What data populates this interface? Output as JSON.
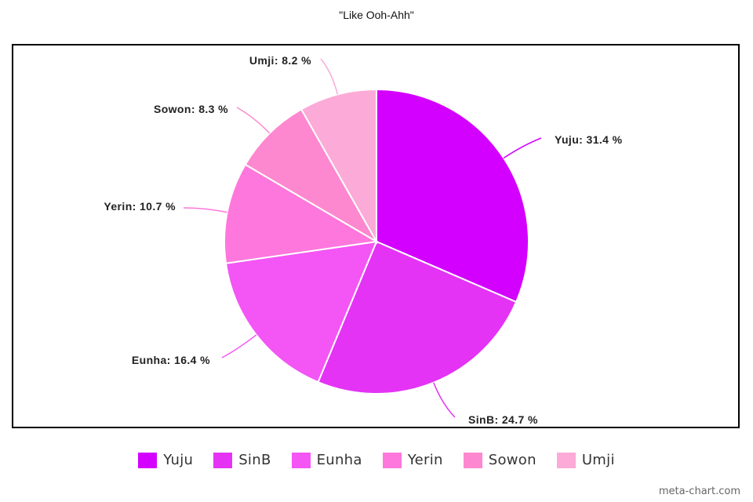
{
  "chart_data": {
    "type": "pie",
    "title": "\"Like Ooh-Ahh\"",
    "slices": [
      {
        "name": "Yuju",
        "value": 31.4,
        "label": "Yuju: 31.4 %",
        "color": "#d400ff"
      },
      {
        "name": "SinB",
        "value": 24.7,
        "label": "SinB: 24.7 %",
        "color": "#e433f5"
      },
      {
        "name": "Eunha",
        "value": 16.4,
        "label": "Eunha: 16.4 %",
        "color": "#f455f5"
      },
      {
        "name": "Yerin",
        "value": 10.7,
        "label": "Yerin: 10.7 %",
        "color": "#fd77dc"
      },
      {
        "name": "Sowon",
        "value": 8.3,
        "label": "Sowon: 8.3 %",
        "color": "#fd88cf"
      },
      {
        "name": "Umji",
        "value": 8.2,
        "label": "Umji: 8.2 %",
        "color": "#fcaad8"
      }
    ],
    "legend_position": "bottom"
  },
  "watermark": "meta-chart.com"
}
